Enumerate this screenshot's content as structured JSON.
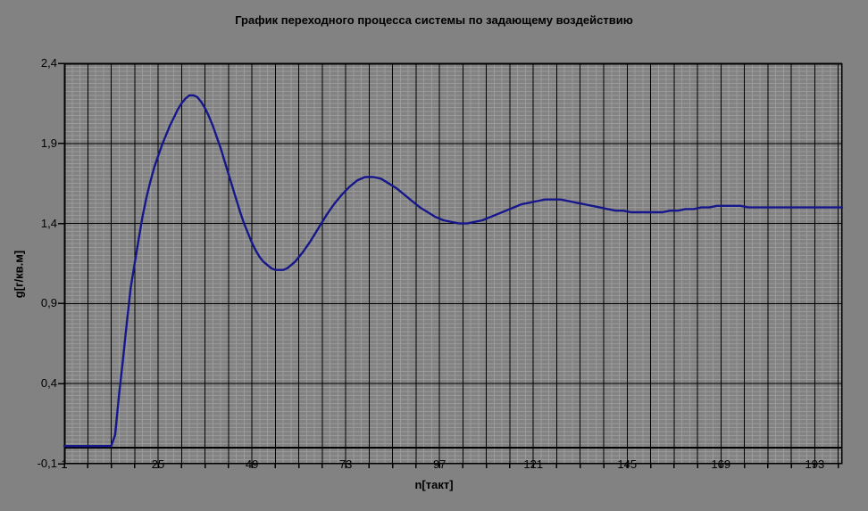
{
  "chart_data": {
    "type": "line",
    "title": "График переходного процесса системы по задающему воздействию",
    "xlabel": "n[такт]",
    "ylabel": "g[г/кв.м]",
    "x_range": [
      1,
      200
    ],
    "y_range": [
      -0.1,
      2.4
    ],
    "grid": "on",
    "legend": "none",
    "category_axis_at_y": 0,
    "y_ticks": [
      {
        "v": 2.4,
        "label": "2,4"
      },
      {
        "v": 1.9,
        "label": "1,9"
      },
      {
        "v": 1.4,
        "label": "1,4"
      },
      {
        "v": 0.9,
        "label": "0,9"
      },
      {
        "v": 0.4,
        "label": "0,4"
      },
      {
        "v": -0.1,
        "label": "-0,1"
      }
    ],
    "x_ticks": [
      {
        "v": 1,
        "label": "1"
      },
      {
        "v": 25,
        "label": "25"
      },
      {
        "v": 49,
        "label": "49"
      },
      {
        "v": 73,
        "label": "73"
      },
      {
        "v": 97,
        "label": "97"
      },
      {
        "v": 121,
        "label": "121"
      },
      {
        "v": 145,
        "label": "145"
      },
      {
        "v": 169,
        "label": "169"
      },
      {
        "v": 193,
        "label": "193"
      }
    ],
    "x_minor_tick_step": 6,
    "x_fine_grid_step": 2,
    "y_major_grid_step": 0.5,
    "y_fine_grid_step": 0.025,
    "colors": {
      "background": "#828282",
      "plot_background": "#828282",
      "fine_grid": "#9b9b9b",
      "major_grid": "#000000",
      "category_axis": "#000000",
      "curve": "#17178c",
      "text": "#000000"
    },
    "series": [
      {
        "color": "#17178c",
        "points": [
          [
            1,
            0.01
          ],
          [
            3,
            0.01
          ],
          [
            5,
            0.01
          ],
          [
            7,
            0.01
          ],
          [
            9,
            0.01
          ],
          [
            11,
            0.01
          ],
          [
            13,
            0.01
          ],
          [
            14,
            0.08
          ],
          [
            15,
            0.33
          ],
          [
            16,
            0.55
          ],
          [
            17,
            0.78
          ],
          [
            18,
            1.0
          ],
          [
            19,
            1.15
          ],
          [
            20,
            1.3
          ],
          [
            21,
            1.44
          ],
          [
            22,
            1.56
          ],
          [
            23,
            1.66
          ],
          [
            24,
            1.75
          ],
          [
            25,
            1.82
          ],
          [
            26,
            1.89
          ],
          [
            27,
            1.95
          ],
          [
            28,
            2.01
          ],
          [
            29,
            2.06
          ],
          [
            30,
            2.11
          ],
          [
            31,
            2.15
          ],
          [
            32,
            2.18
          ],
          [
            33,
            2.2
          ],
          [
            34,
            2.2
          ],
          [
            35,
            2.19
          ],
          [
            36,
            2.16
          ],
          [
            37,
            2.12
          ],
          [
            38,
            2.07
          ],
          [
            39,
            2.01
          ],
          [
            40,
            1.94
          ],
          [
            41,
            1.87
          ],
          [
            42,
            1.79
          ],
          [
            43,
            1.71
          ],
          [
            44,
            1.63
          ],
          [
            45,
            1.55
          ],
          [
            46,
            1.47
          ],
          [
            47,
            1.4
          ],
          [
            48,
            1.34
          ],
          [
            49,
            1.28
          ],
          [
            50,
            1.23
          ],
          [
            51,
            1.19
          ],
          [
            52,
            1.16
          ],
          [
            53,
            1.14
          ],
          [
            54,
            1.12
          ],
          [
            55,
            1.11
          ],
          [
            56,
            1.11
          ],
          [
            57,
            1.11
          ],
          [
            58,
            1.12
          ],
          [
            59,
            1.14
          ],
          [
            60,
            1.16
          ],
          [
            62,
            1.22
          ],
          [
            64,
            1.29
          ],
          [
            66,
            1.37
          ],
          [
            68,
            1.45
          ],
          [
            70,
            1.52
          ],
          [
            72,
            1.58
          ],
          [
            74,
            1.63
          ],
          [
            76,
            1.67
          ],
          [
            78,
            1.69
          ],
          [
            80,
            1.69
          ],
          [
            82,
            1.68
          ],
          [
            84,
            1.65
          ],
          [
            86,
            1.62
          ],
          [
            88,
            1.58
          ],
          [
            90,
            1.54
          ],
          [
            92,
            1.5
          ],
          [
            94,
            1.47
          ],
          [
            96,
            1.44
          ],
          [
            98,
            1.42
          ],
          [
            100,
            1.41
          ],
          [
            102,
            1.4
          ],
          [
            104,
            1.4
          ],
          [
            106,
            1.41
          ],
          [
            108,
            1.42
          ],
          [
            110,
            1.44
          ],
          [
            112,
            1.46
          ],
          [
            114,
            1.48
          ],
          [
            116,
            1.5
          ],
          [
            118,
            1.52
          ],
          [
            120,
            1.53
          ],
          [
            122,
            1.54
          ],
          [
            124,
            1.55
          ],
          [
            126,
            1.55
          ],
          [
            128,
            1.55
          ],
          [
            130,
            1.54
          ],
          [
            132,
            1.53
          ],
          [
            134,
            1.52
          ],
          [
            136,
            1.51
          ],
          [
            138,
            1.5
          ],
          [
            140,
            1.49
          ],
          [
            142,
            1.48
          ],
          [
            144,
            1.48
          ],
          [
            146,
            1.47
          ],
          [
            148,
            1.47
          ],
          [
            150,
            1.47
          ],
          [
            152,
            1.47
          ],
          [
            154,
            1.47
          ],
          [
            156,
            1.48
          ],
          [
            158,
            1.48
          ],
          [
            160,
            1.49
          ],
          [
            162,
            1.49
          ],
          [
            164,
            1.5
          ],
          [
            166,
            1.5
          ],
          [
            168,
            1.51
          ],
          [
            170,
            1.51
          ],
          [
            172,
            1.51
          ],
          [
            174,
            1.51
          ],
          [
            176,
            1.5
          ],
          [
            178,
            1.5
          ],
          [
            180,
            1.5
          ],
          [
            182,
            1.5
          ],
          [
            184,
            1.5
          ],
          [
            186,
            1.5
          ],
          [
            188,
            1.5
          ],
          [
            190,
            1.5
          ],
          [
            192,
            1.5
          ],
          [
            194,
            1.5
          ],
          [
            196,
            1.5
          ],
          [
            198,
            1.5
          ],
          [
            200,
            1.5
          ]
        ]
      }
    ]
  }
}
